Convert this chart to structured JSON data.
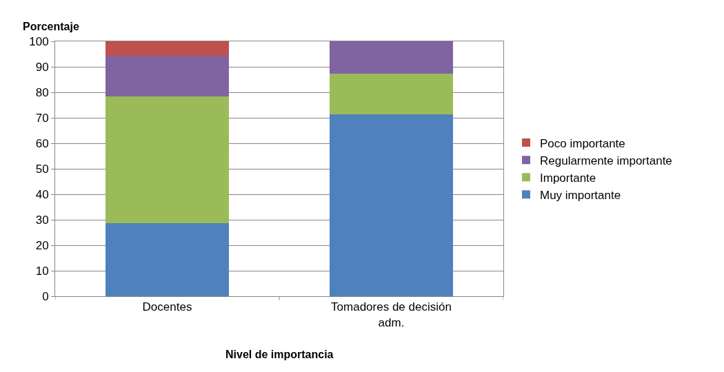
{
  "chart_data": {
    "type": "bar",
    "stacked": true,
    "ylabel": "Porcentaje",
    "xlabel": "Nivel de importancia",
    "categories": [
      "Docentes",
      "Tomadores de decisión adm."
    ],
    "series": [
      {
        "name": "Muy importante",
        "color": "#4f81bd",
        "values": [
          28.6,
          71.4
        ]
      },
      {
        "name": "Importante",
        "color": "#9bbb59",
        "values": [
          49.8,
          15.9
        ]
      },
      {
        "name": "Regularmente importante",
        "color": "#8064a2",
        "values": [
          16.0,
          12.7
        ]
      },
      {
        "name": "Poco importante",
        "color": "#c0504d",
        "values": [
          5.6,
          null
        ]
      }
    ],
    "ylim": [
      0,
      100
    ],
    "yticks": [
      0,
      10,
      20,
      30,
      40,
      50,
      60,
      70,
      80,
      90,
      100
    ],
    "grid": "y",
    "legend": "right"
  }
}
